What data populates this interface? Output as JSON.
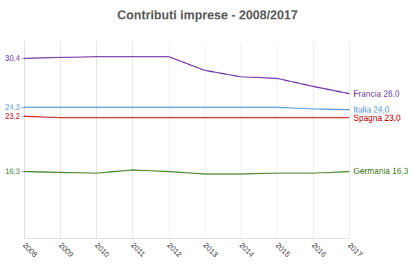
{
  "chart_data": {
    "type": "line",
    "title": "Contributi imprese - 2008/2017",
    "categories": [
      "2008",
      "2009",
      "2010",
      "2011",
      "2012",
      "2013",
      "2014",
      "2015",
      "2016",
      "2017"
    ],
    "series": [
      {
        "name": "Francia",
        "color": "#6a2c9e",
        "values": [
          30.4,
          30.5,
          30.6,
          30.6,
          30.6,
          28.9,
          28.1,
          27.9,
          26.9,
          26.0
        ],
        "value_labels": [
          null,
          null,
          null,
          null,
          null,
          null,
          null,
          null,
          null,
          "26,0"
        ]
      },
      {
        "name": "Italia",
        "color": "#5b9bd5",
        "values": [
          24.3,
          24.3,
          24.3,
          24.3,
          24.3,
          24.3,
          24.3,
          24.3,
          24.1,
          24.0
        ],
        "value_labels": [
          null,
          null,
          null,
          null,
          null,
          null,
          null,
          null,
          null,
          "24,0"
        ]
      },
      {
        "name": "Spagna",
        "color": "#c00000",
        "values": [
          23.2,
          23.0,
          23.0,
          23.0,
          23.0,
          23.0,
          23.0,
          23.0,
          23.0,
          23.0
        ],
        "value_labels": [
          null,
          null,
          null,
          null,
          null,
          null,
          null,
          null,
          null,
          "23,0"
        ]
      },
      {
        "name": "Germania",
        "color": "#3a7a1a",
        "values": [
          16.3,
          16.2,
          16.1,
          16.5,
          16.3,
          16.0,
          16.0,
          16.1,
          16.1,
          16.3
        ],
        "value_labels": [
          null,
          null,
          null,
          null,
          null,
          null,
          null,
          null,
          null,
          "16,3"
        ]
      }
    ],
    "ylim": [
      8,
      32.5
    ],
    "yticks": [
      {
        "value": 16.3,
        "label": "16,3"
      },
      {
        "value": 23.2,
        "label": "23,2"
      },
      {
        "value": 24.3,
        "label": "24,3"
      },
      {
        "value": 30.4,
        "label": "30,4"
      }
    ],
    "grid": true
  }
}
